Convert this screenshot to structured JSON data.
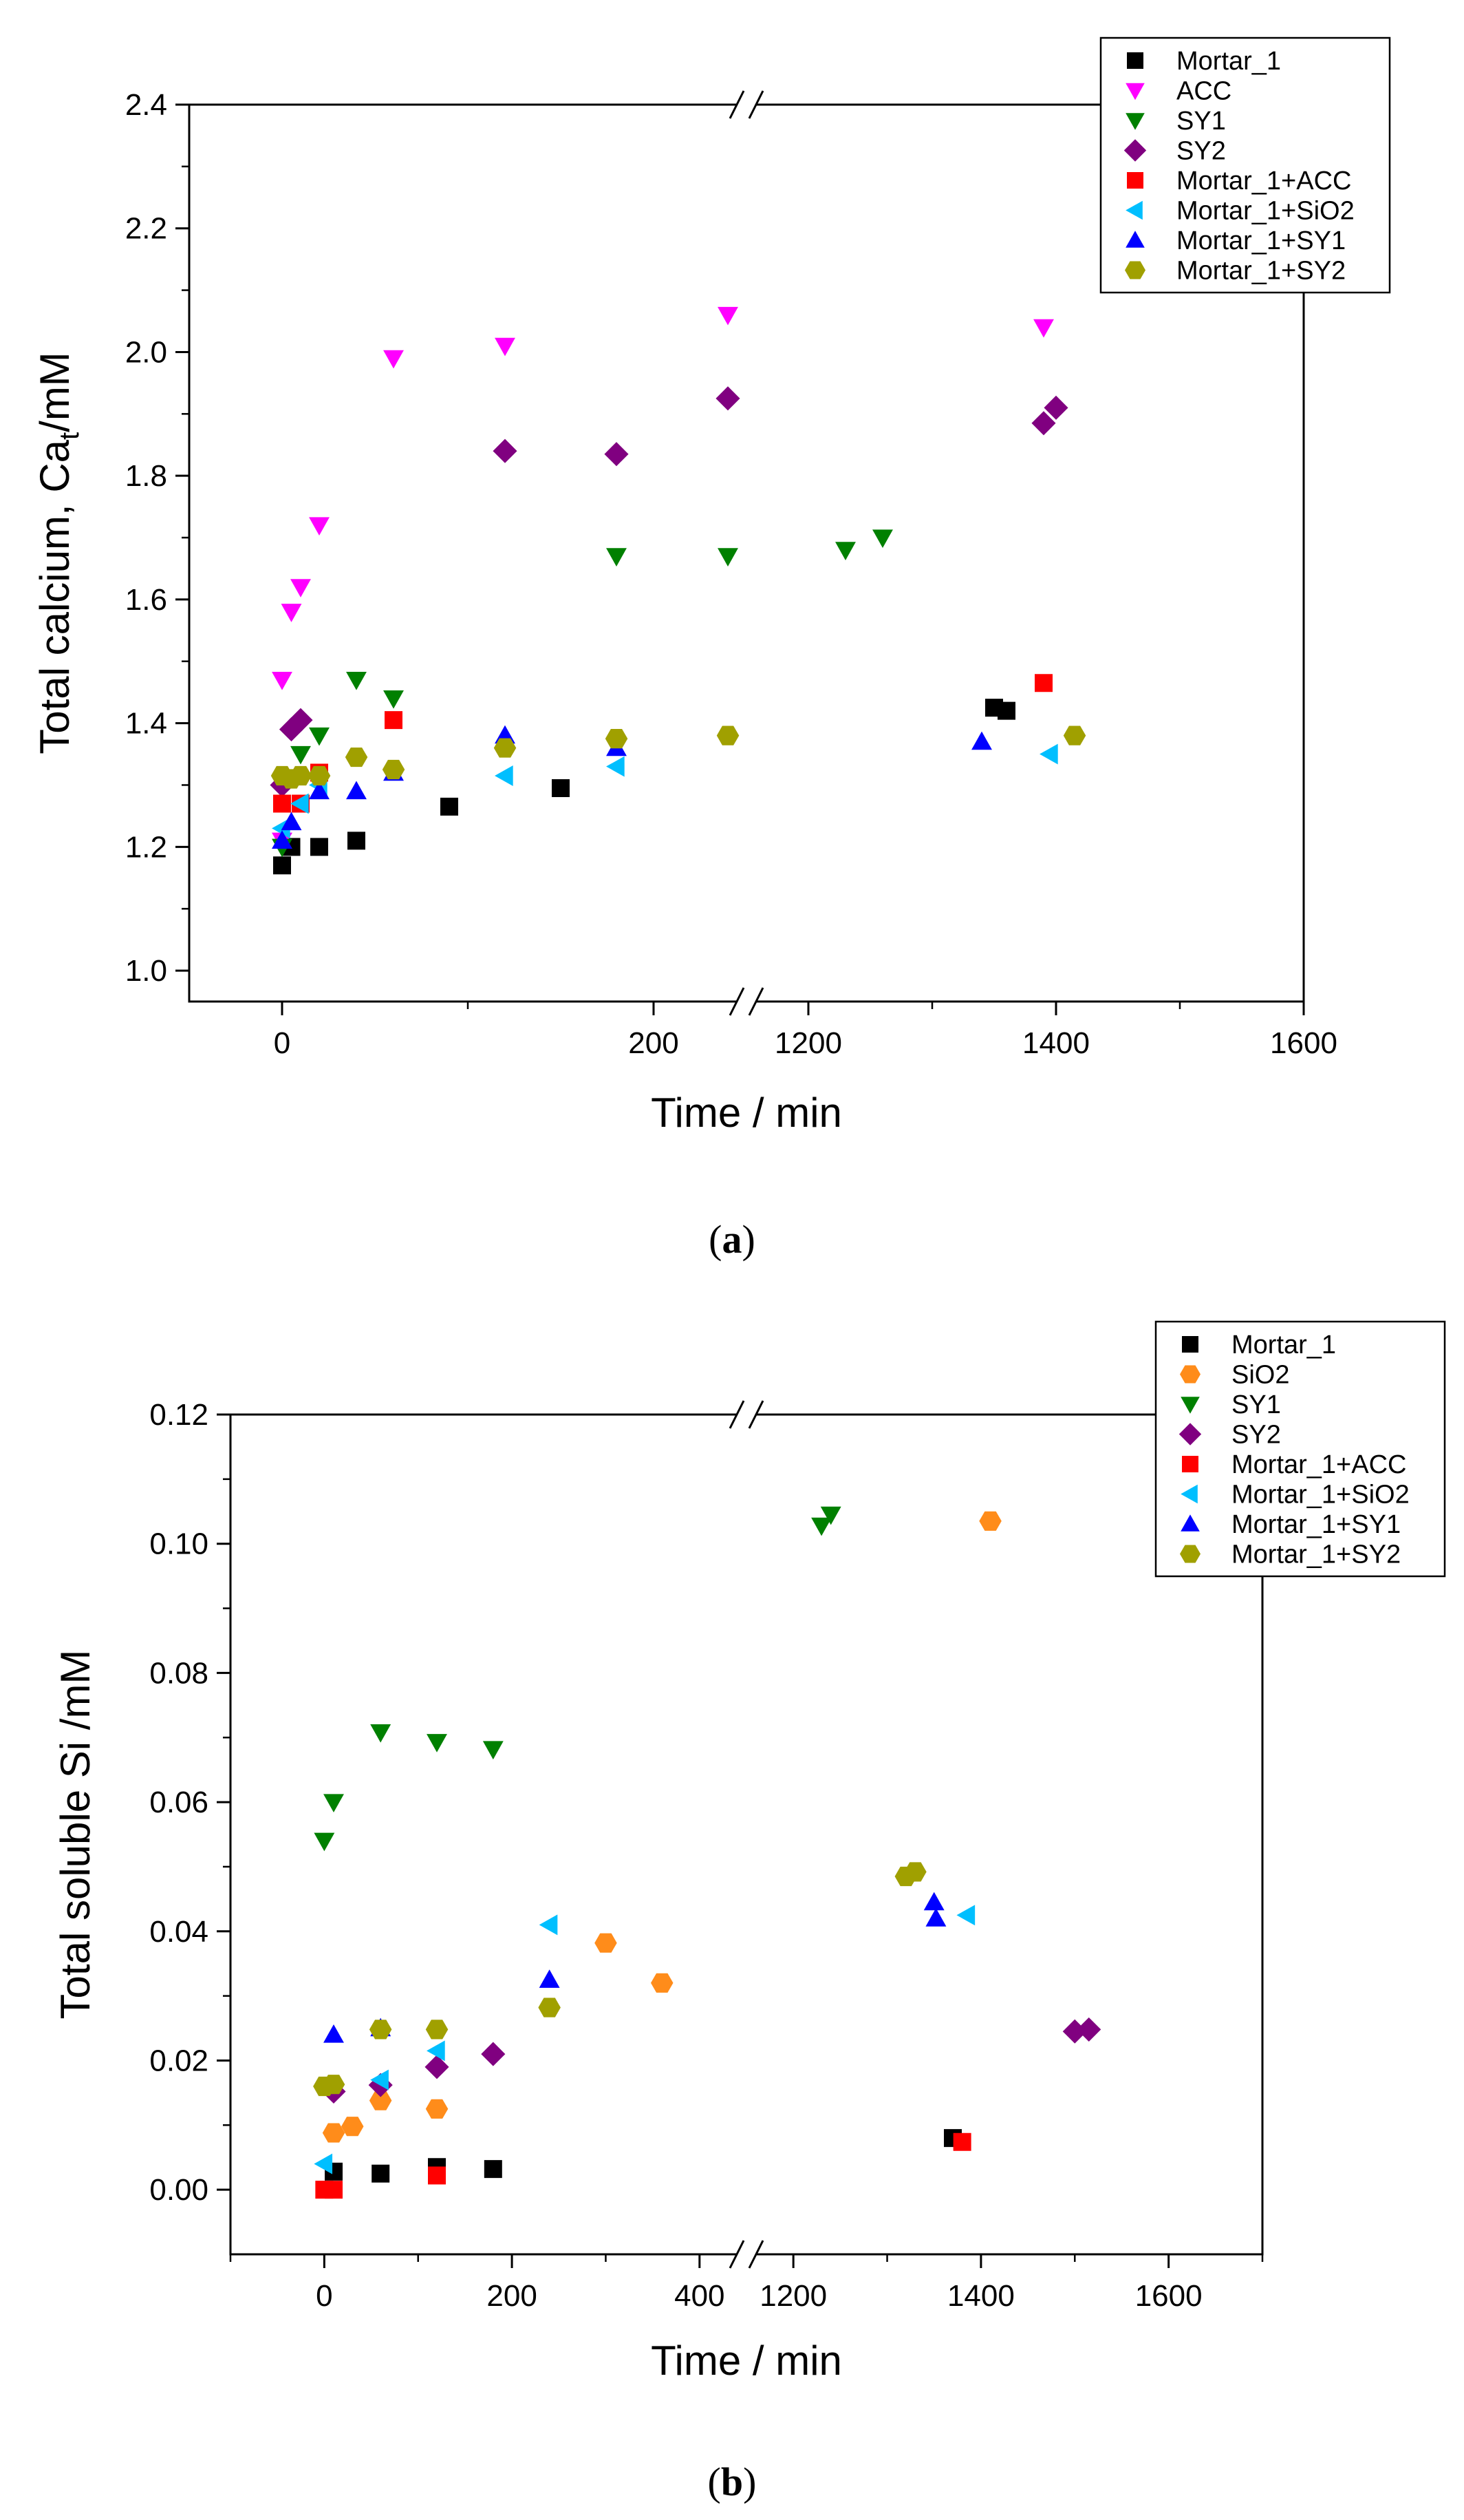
{
  "chart_data": [
    {
      "type": "scatter",
      "panel_label": "a",
      "xlabel": "Time / min",
      "ylabel": "Total calcium, Ca",
      "ylabel_sub": "t",
      "ylabel_tail": "/mM",
      "x_broken": true,
      "x_segments": [
        [
          -50,
          250
        ],
        [
          1150,
          1600
        ]
      ],
      "xticks": [
        0,
        200,
        1200,
        1400,
        1600
      ],
      "ylim": [
        0.95,
        2.4
      ],
      "yticks": [
        1.0,
        1.2,
        1.4,
        1.6,
        1.8,
        2.0,
        2.2,
        2.4
      ],
      "legend_position": "top-right",
      "series": [
        {
          "name": "Mortar_1",
          "marker": "square",
          "color": "#000000",
          "points": [
            [
              0,
              1.17
            ],
            [
              5,
              1.2
            ],
            [
              20,
              1.2
            ],
            [
              40,
              1.21
            ],
            [
              90,
              1.265
            ],
            [
              150,
              1.295
            ],
            [
              1350,
              1.425
            ],
            [
              1360,
              1.42
            ]
          ]
        },
        {
          "name": "ACC",
          "marker": "triangle-down",
          "color": "#ff00ff",
          "points": [
            [
              0,
              1.47
            ],
            [
              0,
              1.21
            ],
            [
              5,
              1.58
            ],
            [
              10,
              1.62
            ],
            [
              20,
              1.72
            ],
            [
              60,
              1.99
            ],
            [
              120,
              2.01
            ],
            [
              240,
              2.06
            ],
            [
              300,
              2.01
            ],
            [
              1390,
              2.04
            ]
          ]
        },
        {
          "name": "SY1",
          "marker": "triangle-down",
          "color": "#008000",
          "points": [
            [
              0,
              1.2
            ],
            [
              10,
              1.35
            ],
            [
              20,
              1.38
            ],
            [
              40,
              1.47
            ],
            [
              60,
              1.44
            ],
            [
              180,
              1.67
            ],
            [
              240,
              1.67
            ],
            [
              1230,
              1.68
            ],
            [
              1260,
              1.7
            ]
          ]
        },
        {
          "name": "SY2",
          "marker": "diamond",
          "color": "#800080",
          "points": [
            [
              0,
              1.3
            ],
            [
              5,
              1.39
            ],
            [
              10,
              1.405
            ],
            [
              120,
              1.84
            ],
            [
              180,
              1.835
            ],
            [
              240,
              1.925
            ],
            [
              1390,
              1.885
            ],
            [
              1400,
              1.91
            ]
          ]
        },
        {
          "name": "Mortar_1+ACC",
          "marker": "square",
          "color": "#ff0000",
          "points": [
            [
              0,
              1.27
            ],
            [
              10,
              1.27
            ],
            [
              20,
              1.32
            ],
            [
              60,
              1.405
            ],
            [
              1390,
              1.465
            ]
          ]
        },
        {
          "name": "Mortar_1+SiO2",
          "marker": "triangle-left",
          "color": "#00bfff",
          "points": [
            [
              0,
              1.23
            ],
            [
              10,
              1.27
            ],
            [
              20,
              1.3
            ],
            [
              120,
              1.315
            ],
            [
              180,
              1.33
            ],
            [
              1395,
              1.35
            ]
          ]
        },
        {
          "name": "Mortar_1+SY1",
          "marker": "triangle-up",
          "color": "#0000ff",
          "points": [
            [
              0,
              1.21
            ],
            [
              5,
              1.24
            ],
            [
              20,
              1.29
            ],
            [
              40,
              1.29
            ],
            [
              60,
              1.32
            ],
            [
              120,
              1.38
            ],
            [
              180,
              1.36
            ],
            [
              1340,
              1.37
            ]
          ]
        },
        {
          "name": "Mortar_1+SY2",
          "marker": "hexagon",
          "color": "#a0a000",
          "points": [
            [
              0,
              1.315
            ],
            [
              5,
              1.31
            ],
            [
              10,
              1.315
            ],
            [
              20,
              1.315
            ],
            [
              40,
              1.345
            ],
            [
              60,
              1.325
            ],
            [
              120,
              1.36
            ],
            [
              180,
              1.375
            ],
            [
              240,
              1.38
            ],
            [
              1415,
              1.38
            ]
          ]
        }
      ]
    },
    {
      "type": "scatter",
      "panel_label": "b",
      "xlabel": "Time / min",
      "ylabel": "Total soluble Si /mM",
      "x_broken": true,
      "x_segments": [
        [
          -100,
          450
        ],
        [
          1150,
          1700
        ]
      ],
      "xticks": [
        0,
        200,
        400,
        1200,
        1400,
        1600
      ],
      "ylim": [
        -0.01,
        0.12
      ],
      "yticks": [
        0.0,
        0.02,
        0.04,
        0.06,
        0.08,
        0.1,
        0.12
      ],
      "ytick_labels": [
        "0.00",
        "0.02",
        "0.04",
        "0.06",
        "0.08",
        "0.10",
        "0.12"
      ],
      "legend_position": "top-right",
      "series": [
        {
          "name": "Mortar_1",
          "marker": "square",
          "color": "#000000",
          "points": [
            [
              10,
              0.0028
            ],
            [
              60,
              0.0025
            ],
            [
              120,
              0.0035
            ],
            [
              180,
              0.0032
            ],
            [
              1370,
              0.008
            ]
          ]
        },
        {
          "name": "SiO2",
          "marker": "hexagon",
          "color": "#ff8c1a",
          "points": [
            [
              10,
              0.0088
            ],
            [
              30,
              0.0098
            ],
            [
              60,
              0.0138
            ],
            [
              120,
              0.0125
            ],
            [
              300,
              0.0382
            ],
            [
              360,
              0.032
            ],
            [
              1410,
              0.1035
            ]
          ]
        },
        {
          "name": "SY1",
          "marker": "triangle-down",
          "color": "#008000",
          "points": [
            [
              0,
              0.054
            ],
            [
              10,
              0.06
            ],
            [
              60,
              0.0708
            ],
            [
              120,
              0.0693
            ],
            [
              180,
              0.0682
            ],
            [
              1230,
              0.1028
            ],
            [
              1240,
              0.1045
            ]
          ]
        },
        {
          "name": "SY2",
          "marker": "diamond",
          "color": "#800080",
          "points": [
            [
              10,
              0.0152
            ],
            [
              60,
              0.0162
            ],
            [
              120,
              0.019
            ],
            [
              180,
              0.021
            ],
            [
              1500,
              0.0245
            ],
            [
              1515,
              0.0248
            ]
          ]
        },
        {
          "name": "Mortar_1+ACC",
          "marker": "square",
          "color": "#ff0000",
          "points": [
            [
              0,
              0.0
            ],
            [
              10,
              0.0
            ],
            [
              120,
              0.0022
            ],
            [
              1380,
              0.0074
            ]
          ]
        },
        {
          "name": "Mortar_1+SiO2",
          "marker": "triangle-left",
          "color": "#00bfff",
          "points": [
            [
              0,
              0.004
            ],
            [
              60,
              0.017
            ],
            [
              120,
              0.0215
            ],
            [
              240,
              0.041
            ],
            [
              1385,
              0.0425
            ]
          ]
        },
        {
          "name": "Mortar_1+SY1",
          "marker": "triangle-up",
          "color": "#0000ff",
          "points": [
            [
              10,
              0.024
            ],
            [
              60,
              0.025
            ],
            [
              240,
              0.0325
            ],
            [
              1350,
              0.0445
            ],
            [
              1352,
              0.042
            ]
          ]
        },
        {
          "name": "Mortar_1+SY2",
          "marker": "hexagon",
          "color": "#a0a000",
          "points": [
            [
              0,
              0.016
            ],
            [
              10,
              0.0163
            ],
            [
              60,
              0.0248
            ],
            [
              120,
              0.0248
            ],
            [
              240,
              0.0282
            ],
            [
              1320,
              0.0485
            ],
            [
              1330,
              0.0492
            ]
          ]
        }
      ]
    }
  ]
}
